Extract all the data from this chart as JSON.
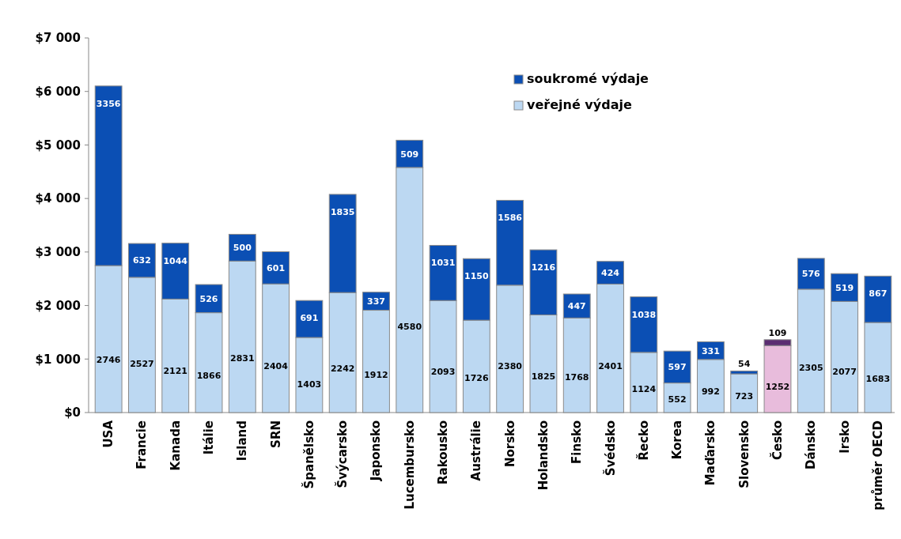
{
  "chart_data": {
    "type": "bar",
    "stacked": true,
    "categories": [
      "USA",
      "Francie",
      "Kanada",
      "Itálie",
      "Island",
      "SRN",
      "Španělsko",
      "Švýcarsko",
      "Japonsko",
      "Lucembursko",
      "Rakousko",
      "Austrálie",
      "Norsko",
      "Holandsko",
      "Finsko",
      "Švédsko",
      "Řecko",
      "Korea",
      "Maďarsko",
      "Slovensko",
      "Česko",
      "Dánsko",
      "Irsko",
      "průměr OECD"
    ],
    "series": [
      {
        "name": "veřejné výdaje",
        "color": "#bcd8f2",
        "colors": [
          "#bcd8f2",
          "#bcd8f2",
          "#bcd8f2",
          "#bcd8f2",
          "#bcd8f2",
          "#bcd8f2",
          "#bcd8f2",
          "#bcd8f2",
          "#bcd8f2",
          "#bcd8f2",
          "#bcd8f2",
          "#bcd8f2",
          "#bcd8f2",
          "#bcd8f2",
          "#bcd8f2",
          "#bcd8f2",
          "#bcd8f2",
          "#bcd8f2",
          "#bcd8f2",
          "#bcd8f2",
          "#e8bcdc",
          "#bcd8f2",
          "#bcd8f2",
          "#bcd8f2"
        ],
        "values": [
          2746,
          2527,
          2121,
          1866,
          2831,
          2404,
          1403,
          2242,
          1912,
          4580,
          2093,
          1726,
          2380,
          1825,
          1768,
          2401,
          1124,
          552,
          992,
          723,
          1252,
          2305,
          2077,
          1683
        ]
      },
      {
        "name": "soukromé výdaje",
        "color": "#0b4fb4",
        "colors": [
          "#0b4fb4",
          "#0b4fb4",
          "#0b4fb4",
          "#0b4fb4",
          "#0b4fb4",
          "#0b4fb4",
          "#0b4fb4",
          "#0b4fb4",
          "#0b4fb4",
          "#0b4fb4",
          "#0b4fb4",
          "#0b4fb4",
          "#0b4fb4",
          "#0b4fb4",
          "#0b4fb4",
          "#0b4fb4",
          "#0b4fb4",
          "#0b4fb4",
          "#0b4fb4",
          "#0b4fb4",
          "#5b2d72",
          "#0b4fb4",
          "#0b4fb4",
          "#0b4fb4"
        ],
        "values": [
          3356,
          632,
          1044,
          526,
          500,
          601,
          691,
          1835,
          337,
          509,
          1031,
          1150,
          1586,
          1216,
          447,
          424,
          1038,
          597,
          331,
          54,
          109,
          576,
          519,
          867
        ]
      }
    ],
    "ylim": [
      0,
      7000
    ],
    "yticks": [
      {
        "value": 0,
        "label": "$0"
      },
      {
        "value": 1000,
        "label": "$1 000"
      },
      {
        "value": 2000,
        "label": "$2 000"
      },
      {
        "value": 3000,
        "label": "$3 000"
      },
      {
        "value": 4000,
        "label": "$4 000"
      },
      {
        "value": 5000,
        "label": "$5 000"
      },
      {
        "value": 6000,
        "label": "$6 000"
      },
      {
        "value": 7000,
        "label": "$7 000"
      }
    ],
    "data_labels": true,
    "legend": "top right",
    "grid": false
  }
}
